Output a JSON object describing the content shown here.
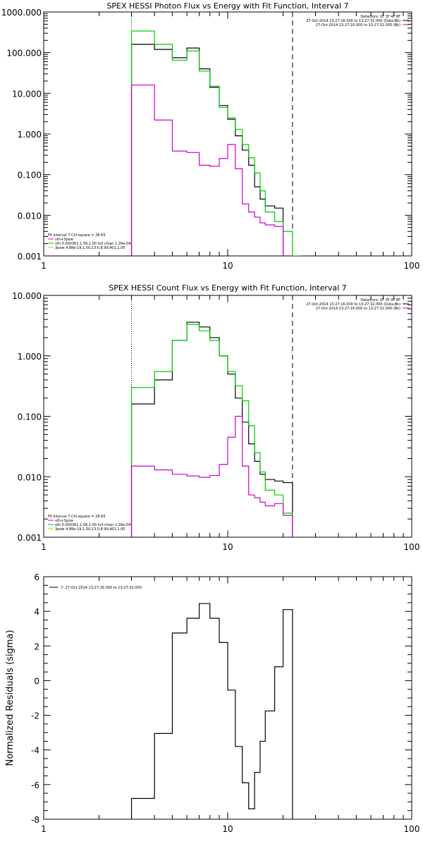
{
  "chart_data": [
    {
      "type": "line",
      "title": "SPEX HESSI Photon Flux vs Energy with Fit Function, Interval 7",
      "xscale": "log",
      "yscale": "log",
      "xlim": [
        1,
        100
      ],
      "ylim": [
        0.001,
        1000
      ],
      "xticks": [
        "1",
        "10",
        "100"
      ],
      "yticks": [
        "0.001",
        "0.010",
        "0.100",
        "1.000",
        "10.000",
        "100.000",
        "1000.000"
      ],
      "info_lines": [
        {
          "text": "Detectors: 1F 3F 4F 8F",
          "color": ""
        },
        {
          "text": "27-Oct-2014 13:27:16.000 to 13:27:32.000 (Data-Bk)",
          "color": "#000000"
        },
        {
          "text": "27-Oct-2014 13:27:16.000 to 13:27:32.000 (Bk)",
          "color": "#cc00cc"
        }
      ],
      "fit_lines": [
        {
          "text": "Fit Interval  7    Chi-square = 28.65",
          "color": ""
        },
        {
          "text": "vth+3pow",
          "color": "#cc00cc"
        },
        {
          "text": "vth 0.000361,1.56,1.00   full chian 1.26e-04",
          "color": "#00cc00"
        },
        {
          "text": "3pow 4.88e-19,1.50,13.0,8.99,401,1.00",
          "color": "#cccc00"
        }
      ],
      "vlines": [
        {
          "x": 3,
          "style": "dotted"
        },
        {
          "x": 22.5,
          "style": "dashed"
        }
      ],
      "x_edges": [
        3,
        4,
        5,
        6,
        7,
        8,
        9,
        10,
        11,
        12,
        13,
        14,
        15,
        16,
        18,
        20,
        22.5,
        25
      ],
      "series": [
        {
          "color": "#000000",
          "values": [
            160,
            120,
            75,
            130,
            40,
            14,
            5,
            2.3,
            0.9,
            0.4,
            0.17,
            0.05,
            0.025,
            0.017,
            0.015,
            0.001
          ]
        },
        {
          "color": "#00cc00",
          "values": [
            340,
            160,
            65,
            110,
            35,
            15,
            4.5,
            2.5,
            1.3,
            0.55,
            0.26,
            0.11,
            0.04,
            0.012,
            0.007,
            0.004,
            0.001
          ]
        },
        {
          "color": "#cc00cc",
          "values": [
            16,
            2.2,
            0.38,
            0.35,
            0.17,
            0.16,
            0.25,
            0.55,
            0.14,
            0.019,
            0.012,
            0.009,
            0.0065,
            0.0058,
            0.0053,
            0.001
          ]
        }
      ]
    },
    {
      "type": "line",
      "title": "SPEX HESSI Count Flux vs Energy with Fit Function, Interval 7",
      "xscale": "log",
      "yscale": "log",
      "xlim": [
        1,
        100
      ],
      "ylim": [
        0.001,
        10
      ],
      "xticks": [
        "1",
        "10",
        "100"
      ],
      "yticks": [
        "0.001",
        "0.010",
        "0.100",
        "1.000",
        "10.000"
      ],
      "info_lines": [
        {
          "text": "Detectors: 1F 3F 4F 8F",
          "color": ""
        },
        {
          "text": "27-Oct-2014 13:27:16.000 to 13:27:32.000 (Data-Bk)",
          "color": "#000000"
        },
        {
          "text": "27-Oct-2014 13:27:16.000 to 13:27:32.000 (Bk)",
          "color": "#cc00cc"
        }
      ],
      "fit_lines": [
        {
          "text": "Fit Interval  7    Chi-square = 28.65",
          "color": ""
        },
        {
          "text": "vth+3pow",
          "color": "#cc00cc"
        },
        {
          "text": "vth 0.000361,1.56,1.00   full chian 1.26e-04",
          "color": "#00cc00"
        },
        {
          "text": "3pow 4.88e-19,1.50,13.0,8.99,401,1.00",
          "color": "#cccc00"
        }
      ],
      "vlines": [
        {
          "x": 3,
          "style": "dotted"
        },
        {
          "x": 22.5,
          "style": "dashed"
        }
      ],
      "x_edges": [
        3,
        4,
        5,
        6,
        7,
        8,
        9,
        10,
        11,
        12,
        13,
        14,
        15,
        16,
        18,
        20,
        22.5
      ],
      "series": [
        {
          "color": "#000000",
          "values": [
            0.16,
            0.4,
            1.8,
            3.6,
            3.0,
            2.0,
            1.0,
            0.5,
            0.2,
            0.08,
            0.035,
            0.018,
            0.011,
            0.009,
            0.0085,
            0.008
          ]
        },
        {
          "color": "#00cc00",
          "values": [
            0.3,
            0.55,
            1.8,
            3.3,
            2.6,
            1.8,
            1.0,
            0.55,
            0.32,
            0.18,
            0.07,
            0.025,
            0.012,
            0.006,
            0.005,
            0.0025
          ]
        },
        {
          "color": "#cc00cc",
          "values": [
            0.015,
            0.013,
            0.011,
            0.0103,
            0.0098,
            0.0105,
            0.016,
            0.045,
            0.1,
            0.015,
            0.005,
            0.0045,
            0.0038,
            0.0033,
            0.0036,
            0.0023
          ]
        }
      ]
    },
    {
      "type": "line",
      "title": "",
      "ylabel": "Normalized Residuals (sigma)",
      "xscale": "log",
      "yscale": "linear",
      "xlim": [
        1,
        100
      ],
      "ylim": [
        -8,
        6
      ],
      "xticks": [
        "1",
        "10",
        "100"
      ],
      "yticks": [
        "-8",
        "-6",
        "-4",
        "-2",
        "0",
        "2",
        "4",
        "6"
      ],
      "legend_lines": [
        {
          "text": "7: 27-Oct-2014 13:27:16.000 to 13:27:32.000",
          "color": "#000000"
        }
      ],
      "x_edges": [
        3,
        4,
        5,
        6,
        7,
        8,
        9,
        10,
        11,
        12,
        13,
        14,
        15,
        16,
        18,
        20,
        22.5
      ],
      "series": [
        {
          "color": "#000000",
          "values": [
            -6.8,
            -3.05,
            2.75,
            3.6,
            4.45,
            3.6,
            2.2,
            -0.55,
            -3.8,
            -5.9,
            -7.4,
            -5.3,
            -3.5,
            -1.75,
            0.8,
            4.1
          ]
        }
      ]
    }
  ]
}
